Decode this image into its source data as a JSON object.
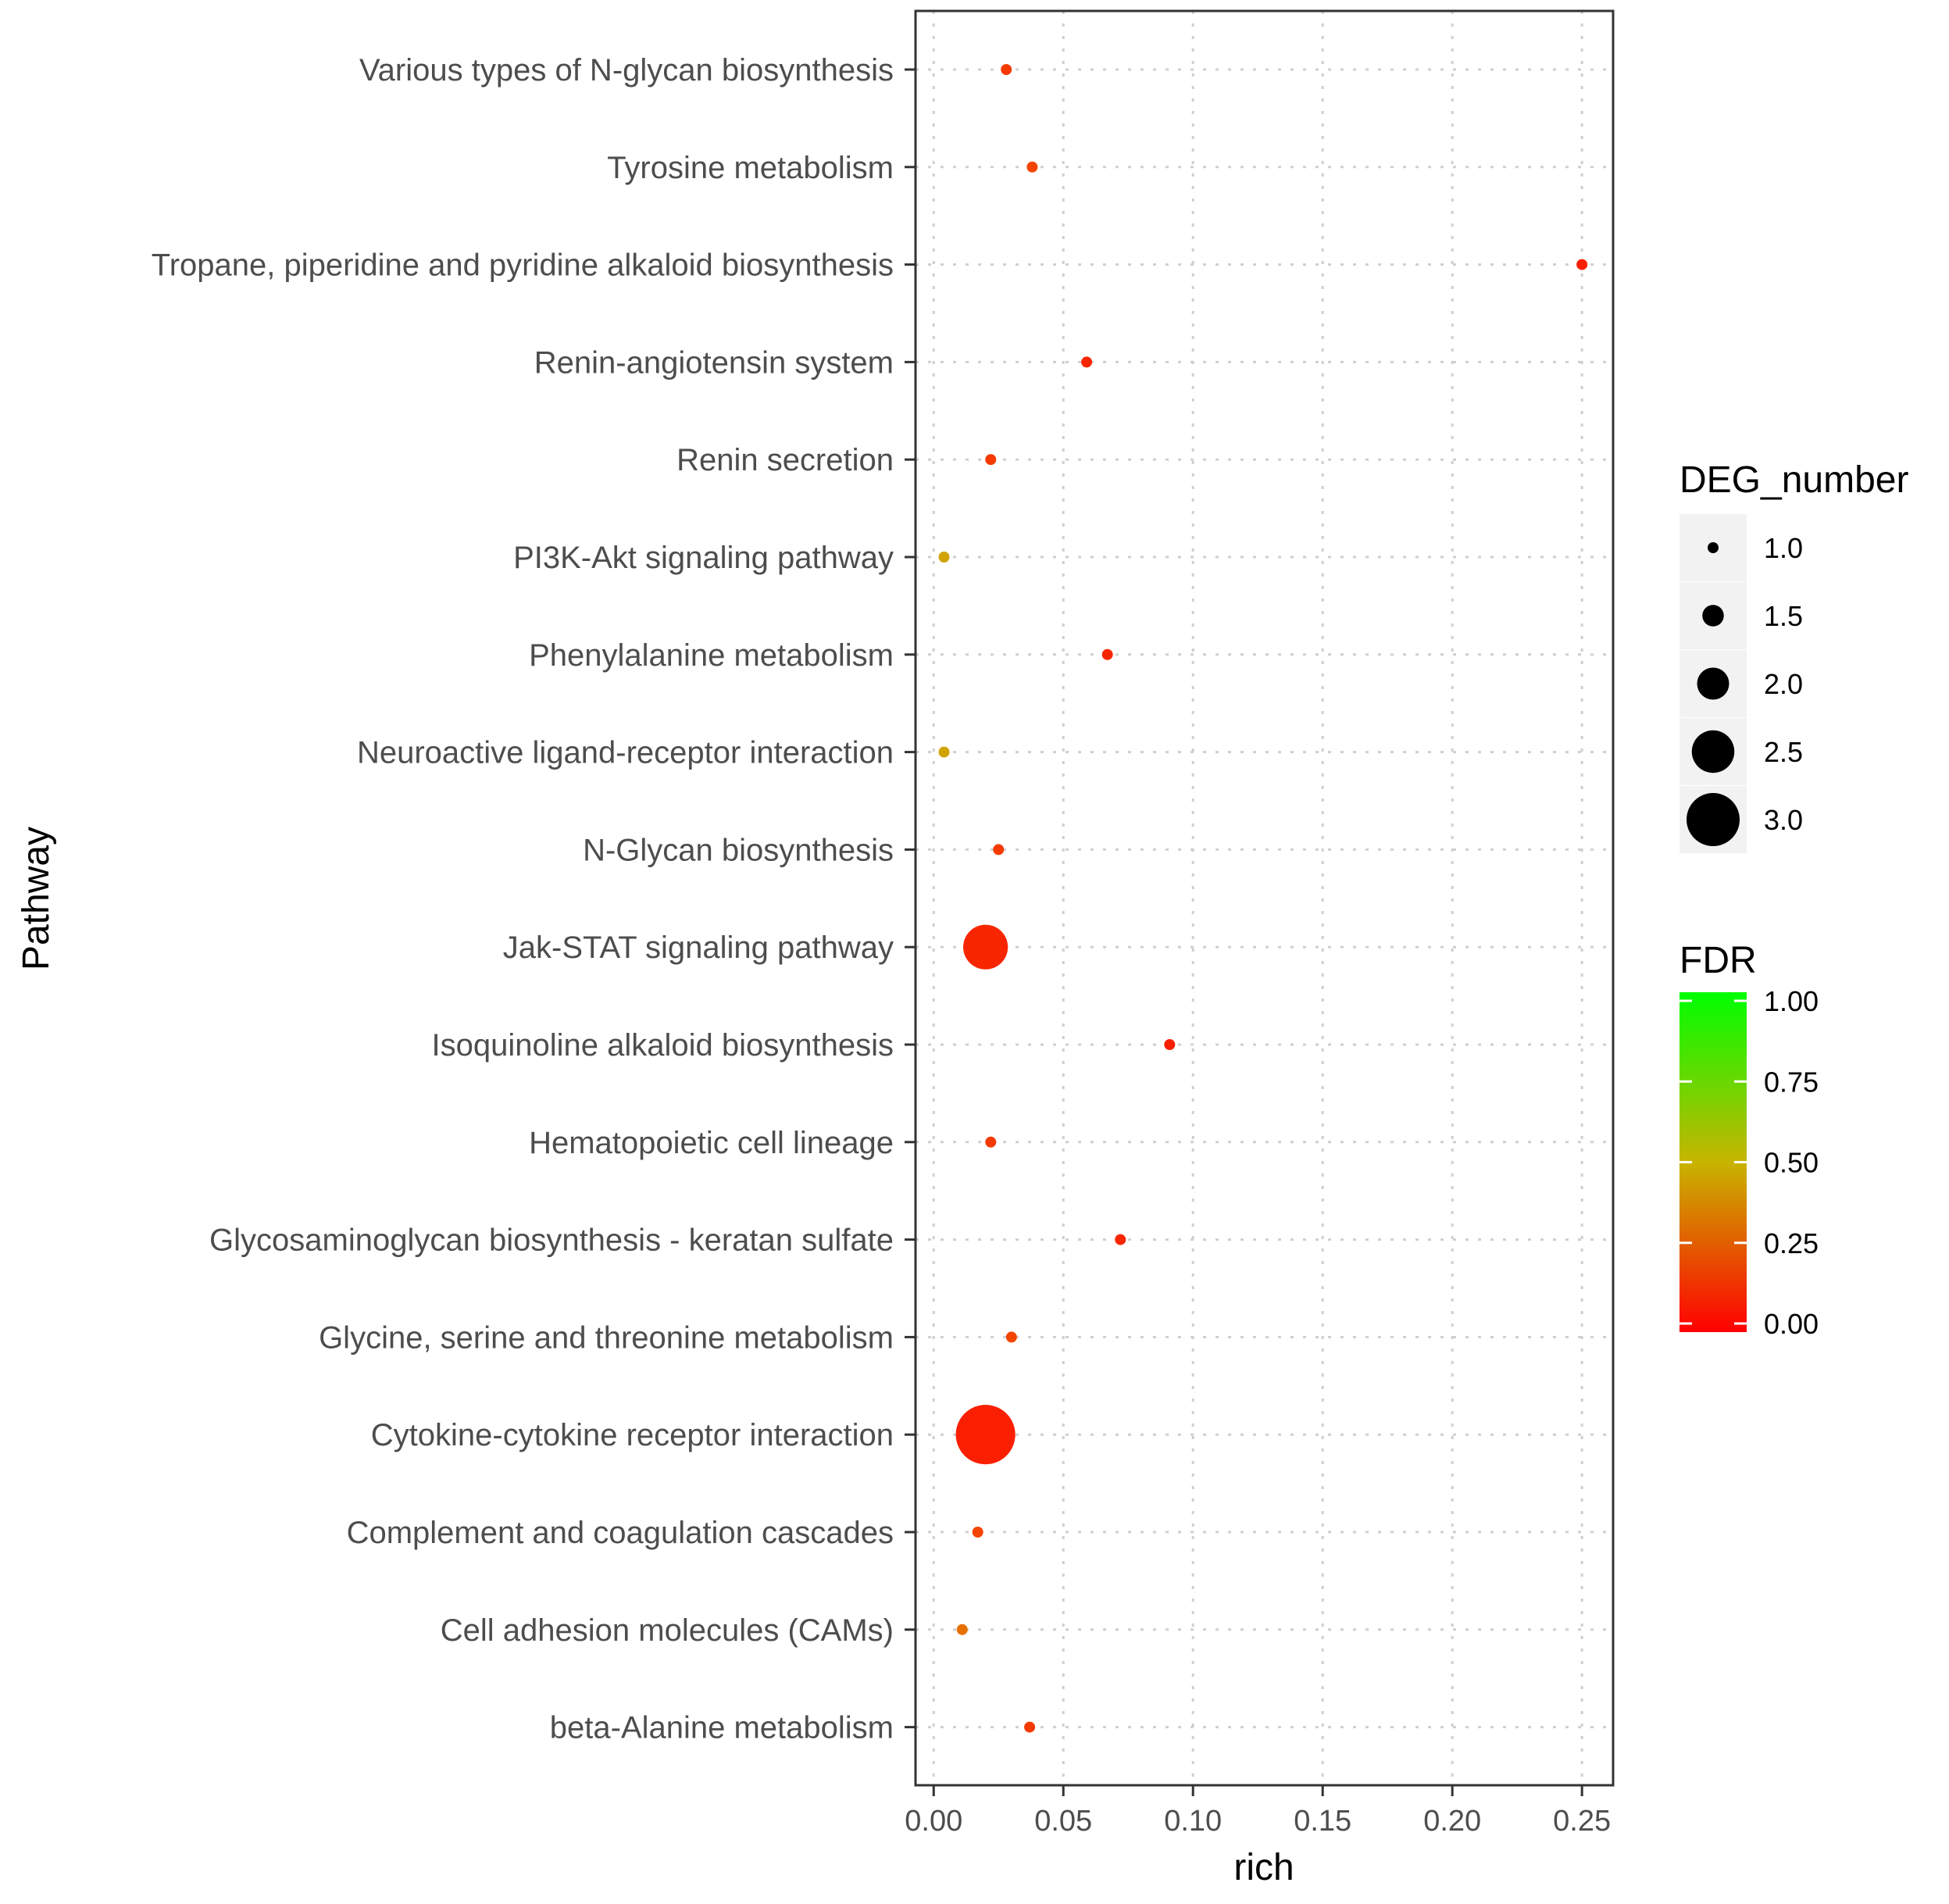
{
  "chart_data": {
    "type": "scatter",
    "xlabel": "rich",
    "ylabel": "Pathway",
    "xlim": [
      -0.007,
      0.262
    ],
    "x_ticks": [
      "0.00",
      "0.05",
      "0.10",
      "0.15",
      "0.20",
      "0.25"
    ],
    "x_tick_values": [
      0.0,
      0.05,
      0.1,
      0.15,
      0.2,
      0.25
    ],
    "grid": true,
    "categories": [
      "Various types of N-glycan biosynthesis",
      "Tyrosine metabolism",
      "Tropane, piperidine and pyridine alkaloid biosynthesis",
      "Renin-angiotensin system",
      "Renin secretion",
      "PI3K-Akt signaling pathway",
      "Phenylalanine metabolism",
      "Neuroactive ligand-receptor interaction",
      "N-Glycan biosynthesis",
      "Jak-STAT signaling pathway",
      "Isoquinoline alkaloid biosynthesis",
      "Hematopoietic cell lineage",
      "Glycosaminoglycan biosynthesis - keratan sulfate",
      "Glycine, serine and threonine metabolism",
      "Cytokine-cytokine receptor interaction",
      "Complement and coagulation cascades",
      "Cell adhesion molecules (CAMs)",
      "beta-Alanine metabolism"
    ],
    "points": [
      {
        "pathway": "Various types of N-glycan biosynthesis",
        "rich": 0.028,
        "deg_number": 1,
        "fdr": 0.15
      },
      {
        "pathway": "Tyrosine metabolism",
        "rich": 0.038,
        "deg_number": 1,
        "fdr": 0.18
      },
      {
        "pathway": "Tropane, piperidine and pyridine alkaloid biosynthesis",
        "rich": 0.25,
        "deg_number": 1,
        "fdr": 0.08
      },
      {
        "pathway": "Renin-angiotensin system",
        "rich": 0.059,
        "deg_number": 1,
        "fdr": 0.1
      },
      {
        "pathway": "Renin secretion",
        "rich": 0.022,
        "deg_number": 1,
        "fdr": 0.15
      },
      {
        "pathway": "PI3K-Akt signaling pathway",
        "rich": 0.004,
        "deg_number": 1,
        "fdr": 0.45
      },
      {
        "pathway": "Phenylalanine metabolism",
        "rich": 0.067,
        "deg_number": 1,
        "fdr": 0.1
      },
      {
        "pathway": "Neuroactive ligand-receptor interaction",
        "rich": 0.004,
        "deg_number": 1,
        "fdr": 0.45
      },
      {
        "pathway": "N-Glycan biosynthesis",
        "rich": 0.025,
        "deg_number": 1,
        "fdr": 0.15
      },
      {
        "pathway": "Jak-STAT signaling pathway",
        "rich": 0.02,
        "deg_number": 2.6,
        "fdr": 0.1
      },
      {
        "pathway": "Isoquinoline alkaloid biosynthesis",
        "rich": 0.091,
        "deg_number": 1,
        "fdr": 0.08
      },
      {
        "pathway": "Hematopoietic cell lineage",
        "rich": 0.022,
        "deg_number": 1,
        "fdr": 0.15
      },
      {
        "pathway": "Glycosaminoglycan biosynthesis - keratan sulfate",
        "rich": 0.072,
        "deg_number": 1,
        "fdr": 0.1
      },
      {
        "pathway": "Glycine, serine and threonine metabolism",
        "rich": 0.03,
        "deg_number": 1,
        "fdr": 0.18
      },
      {
        "pathway": "Cytokine-cytokine receptor interaction",
        "rich": 0.02,
        "deg_number": 3.3,
        "fdr": 0.08
      },
      {
        "pathway": "Complement and coagulation cascades",
        "rich": 0.017,
        "deg_number": 1,
        "fdr": 0.18
      },
      {
        "pathway": "Cell adhesion molecules (CAMs)",
        "rich": 0.011,
        "deg_number": 1,
        "fdr": 0.3
      },
      {
        "pathway": "beta-Alanine metabolism",
        "rich": 0.037,
        "deg_number": 1,
        "fdr": 0.15
      }
    ],
    "size_legend": {
      "title": "DEG_number",
      "values": [
        1.0,
        1.5,
        2.0,
        2.5,
        3.0
      ],
      "labels": [
        "1.0",
        "1.5",
        "2.0",
        "2.5",
        "3.0"
      ]
    },
    "color_legend": {
      "title": "FDR",
      "labels": [
        "1.00",
        "0.75",
        "0.50",
        "0.25",
        "0.00"
      ],
      "values": [
        1.0,
        0.75,
        0.5,
        0.25,
        0.0
      ],
      "low_color": "#ff0000",
      "high_color": "#00ff00"
    },
    "colors": {
      "panel_border": "#333333",
      "grid": "#cfcfcf",
      "legend_key_bg": "#f2f2f2"
    }
  }
}
